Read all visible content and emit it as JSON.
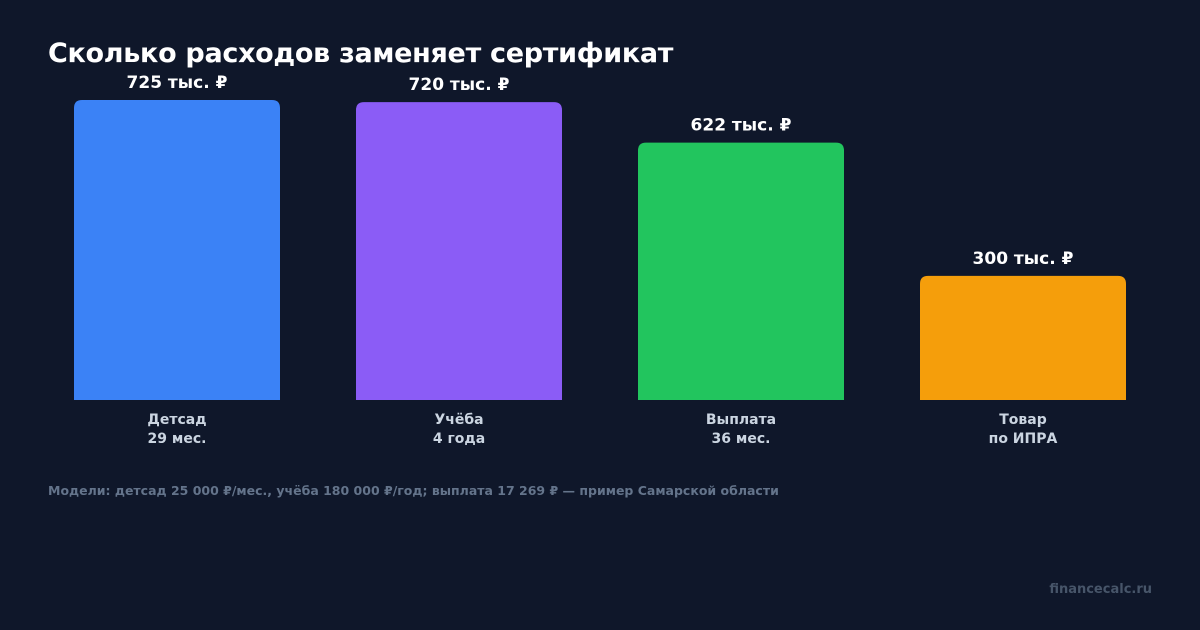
{
  "colors": {
    "background": "#0f172a",
    "text": "#ffffff",
    "category_text": "#cbd5e1",
    "note_text": "#64748b",
    "brand_text": "#475569"
  },
  "note": "Модели: детсад 25 000 ₽/мес., учёба 180 000 ₽/год; выплата 17 269 ₽ — пример Самарской области",
  "brand": "financecalc.ru",
  "chart_data": {
    "type": "bar",
    "title": "Сколько расходов заменяет сертификат",
    "xlabel": "",
    "ylabel": "",
    "unit": "тыс. ₽",
    "ylim": [
      0,
      725
    ],
    "grid": false,
    "categories": [
      [
        "Детсад",
        "29 мес."
      ],
      [
        "Учёба",
        "4 года"
      ],
      [
        "Выплата",
        "36 мес."
      ],
      [
        "Товар",
        "по ИПРА"
      ]
    ],
    "values": [
      725,
      720,
      622,
      300
    ],
    "value_labels": [
      "725 тыс. ₽",
      "720 тыс. ₽",
      "622 тыс. ₽",
      "300 тыс. ₽"
    ],
    "bar_colors": [
      "#3b82f6",
      "#8b5cf6",
      "#22c55e",
      "#f59e0b"
    ]
  }
}
